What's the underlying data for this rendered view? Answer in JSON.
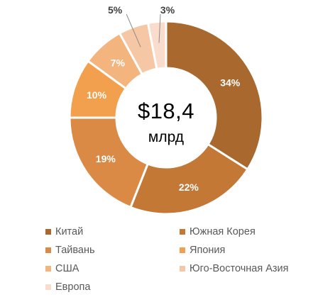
{
  "chart_data": {
    "type": "pie",
    "variant": "donut",
    "center_value": "$18,4",
    "center_unit": "млрд",
    "categories": [
      "Китай",
      "Южная Корея",
      "Тайвань",
      "Япония",
      "США",
      "Юго-Восточная Азия",
      "Европа"
    ],
    "values": [
      34,
      22,
      19,
      10,
      7,
      5,
      3
    ],
    "data_labels": [
      "34%",
      "22%",
      "19%",
      "10%",
      "7%",
      "5%",
      "3%"
    ],
    "colors": [
      "#A9682E",
      "#C37836",
      "#DA8A45",
      "#F2A04E",
      "#F3B47E",
      "#F6C7A5",
      "#F9DCCB"
    ],
    "label_color": "#ffffff",
    "outside_label_color": "#404040",
    "legend_position": "bottom"
  }
}
